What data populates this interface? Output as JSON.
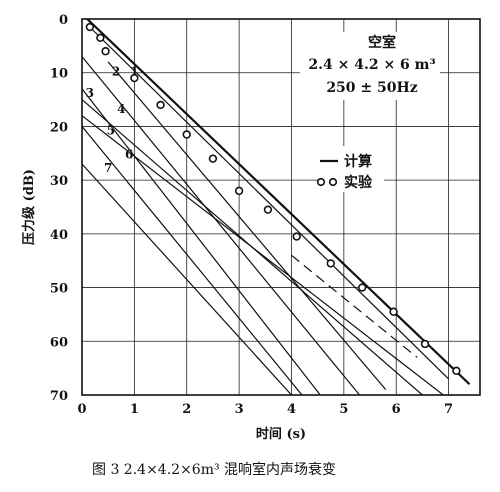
{
  "chart_data": {
    "type": "line",
    "xlabel": "时间 (s)",
    "ylabel": "压力级 (dB)",
    "xlim": [
      0,
      7.6
    ],
    "ylim": [
      0,
      70
    ],
    "y_inverted": true,
    "grid": true,
    "xticks": [
      0,
      1,
      2,
      3,
      4,
      5,
      6,
      7
    ],
    "yticks": [
      0,
      10,
      20,
      30,
      40,
      50,
      60,
      70
    ],
    "annotation": {
      "title": "空室",
      "dimensions": "2.4 × 4.2 × 6 m³",
      "band": "250 ± 50Hz"
    },
    "legend": [
      {
        "label": "计算",
        "marker": "line"
      },
      {
        "label": "实验",
        "marker": "circles"
      }
    ],
    "series": [
      {
        "name": "1",
        "kind": "calc",
        "x": [
          0.1,
          7.4
        ],
        "y": [
          0,
          68
        ]
      },
      {
        "name": "2",
        "kind": "calc",
        "x": [
          0,
          5.3
        ],
        "y": [
          7,
          70
        ]
      },
      {
        "name": "3",
        "kind": "calc",
        "x": [
          0,
          4.55
        ],
        "y": [
          13,
          70
        ]
      },
      {
        "name": "4",
        "kind": "calc",
        "x": [
          0,
          6.5
        ],
        "y": [
          15,
          70
        ]
      },
      {
        "name": "5",
        "kind": "calc",
        "x": [
          0,
          4.2
        ],
        "y": [
          20,
          70
        ]
      },
      {
        "name": "6",
        "kind": "calc",
        "x": [
          0,
          6.9
        ],
        "y": [
          18,
          70
        ]
      },
      {
        "name": "7",
        "kind": "calc",
        "x": [
          0,
          4.0
        ],
        "y": [
          27,
          70
        ]
      },
      {
        "name": "",
        "kind": "calc",
        "x": [
          0.2,
          7.0
        ],
        "y": [
          2,
          67
        ]
      },
      {
        "name": "",
        "kind": "calc",
        "x": [
          0.5,
          5.8
        ],
        "y": [
          8,
          69
        ]
      },
      {
        "name": "",
        "kind": "calc-dashed",
        "x": [
          4.0,
          6.4
        ],
        "y": [
          44,
          63
        ]
      },
      {
        "name": "",
        "kind": "experiment",
        "x": [
          0.15,
          0.35,
          0.45,
          1.0,
          1.5,
          2.0,
          2.5,
          3.0,
          3.55,
          4.1,
          4.75,
          5.35,
          5.95,
          6.55,
          7.15
        ],
        "y": [
          1.5,
          3.5,
          6,
          11,
          16,
          21.5,
          26,
          32,
          35.5,
          40.5,
          45.5,
          50,
          54.5,
          60.5,
          65.5
        ]
      }
    ],
    "curve_labels": [
      {
        "text": "1",
        "x": 1.0,
        "y": 10.5
      },
      {
        "text": "2",
        "x": 0.65,
        "y": 10.5
      },
      {
        "text": "3",
        "x": 0.15,
        "y": 14.5
      },
      {
        "text": "4",
        "x": 0.75,
        "y": 17.5
      },
      {
        "text": "5",
        "x": 0.55,
        "y": 21.5
      },
      {
        "text": "6",
        "x": 0.9,
        "y": 26.0
      },
      {
        "text": "7",
        "x": 0.5,
        "y": 28.5
      }
    ]
  },
  "caption": "图 3   2.4×4.2×6m³ 混响室内声场衰变"
}
